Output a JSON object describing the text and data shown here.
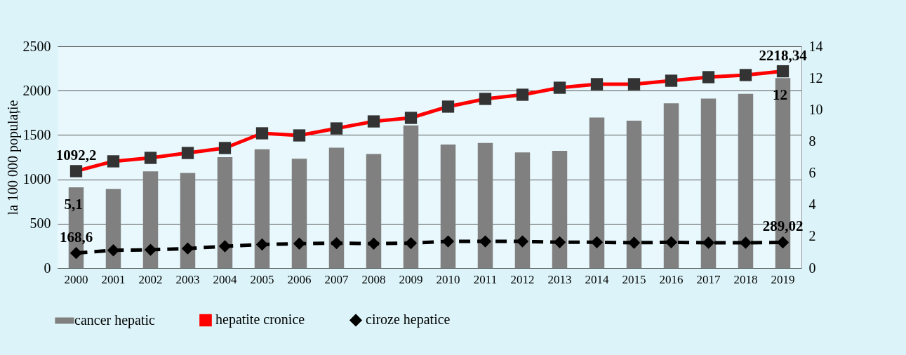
{
  "chart_data": {
    "type": "bar",
    "categories": [
      "2000",
      "2001",
      "2002",
      "2003",
      "2004",
      "2005",
      "2006",
      "2007",
      "2008",
      "2009",
      "2010",
      "2011",
      "2012",
      "2013",
      "2014",
      "2015",
      "2016",
      "2017",
      "2018",
      "2019"
    ],
    "ylabel": "la 100 000 populație",
    "ylim": [
      0,
      2500
    ],
    "yticks": [
      0,
      500,
      1000,
      1500,
      2000,
      2500
    ],
    "y2lim": [
      0,
      14
    ],
    "y2ticks": [
      0,
      2,
      4,
      6,
      8,
      10,
      12,
      14
    ],
    "grid": "y",
    "legend": "bottom",
    "series": [
      {
        "name": "cancer hepatic",
        "type": "bar",
        "axis": "y2",
        "color": "#808080",
        "values": [
          5.1,
          5.0,
          6.1,
          6.0,
          7.0,
          7.5,
          6.9,
          7.6,
          7.2,
          9.0,
          7.8,
          7.9,
          7.3,
          7.4,
          9.5,
          9.3,
          10.4,
          10.7,
          11.0,
          12
        ],
        "value_labels": [
          "5,1",
          null,
          null,
          null,
          null,
          null,
          null,
          null,
          null,
          null,
          null,
          null,
          null,
          null,
          null,
          null,
          null,
          null,
          null,
          "12"
        ]
      },
      {
        "name": "hepatite cronice",
        "type": "line",
        "marker": "square",
        "line_style": "solid",
        "color": "#ff0000",
        "values": [
          1092.2,
          1203,
          1242,
          1297,
          1353,
          1519,
          1495,
          1574,
          1653,
          1693,
          1820,
          1907,
          1954,
          2033,
          2073,
          2073,
          2112,
          2152,
          2176,
          2218.34
        ],
        "value_labels": [
          "1092,2",
          null,
          null,
          null,
          null,
          null,
          null,
          null,
          null,
          null,
          null,
          null,
          null,
          null,
          null,
          null,
          null,
          null,
          null,
          "2218,34"
        ]
      },
      {
        "name": "ciroze hepatice",
        "type": "line",
        "marker": "diamond",
        "line_style": "dashed",
        "color": "#000000",
        "values": [
          168.6,
          200,
          205,
          220,
          245,
          265,
          275,
          280,
          275,
          280,
          300,
          300,
          300,
          290,
          290,
          285,
          290,
          285,
          285,
          289.02
        ],
        "value_labels": [
          "168,6",
          null,
          null,
          null,
          null,
          null,
          null,
          null,
          null,
          null,
          null,
          null,
          null,
          null,
          null,
          null,
          null,
          null,
          null,
          "289,02"
        ]
      }
    ]
  }
}
